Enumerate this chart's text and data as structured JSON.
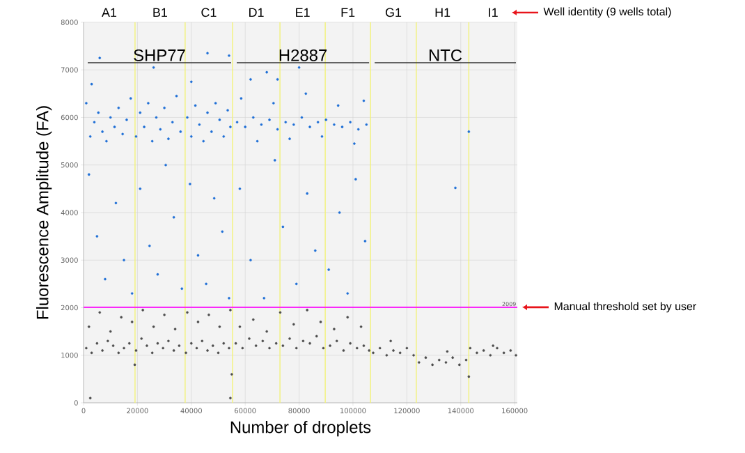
{
  "chart_data": {
    "type": "scatter",
    "xlabel": "Number of droplets",
    "ylabel": "Fluorescence Amplitude (FA)",
    "xlim": [
      0,
      161000
    ],
    "ylim": [
      0,
      8000
    ],
    "xticks": [
      0,
      20000,
      40000,
      60000,
      80000,
      100000,
      120000,
      140000,
      160000
    ],
    "yticks": [
      0,
      1000,
      2000,
      3000,
      4000,
      5000,
      6000,
      7000,
      8000
    ],
    "grid": true,
    "series": [
      {
        "color": "#1f6fd6",
        "x": [
          1000,
          2500,
          4000,
          5500,
          7000,
          8500,
          10000,
          11500,
          13000,
          14500,
          16000,
          17500,
          19500,
          21000,
          22500,
          24000,
          25500,
          27000,
          28500,
          30000,
          31500,
          33000,
          34500,
          36000,
          38500,
          40000,
          41500,
          43000,
          44500,
          46000,
          47500,
          49000,
          50500,
          52000,
          53500,
          54500,
          2000,
          5000,
          8000,
          12000,
          15000,
          18000,
          21000,
          24500,
          27500,
          30500,
          33500,
          36500,
          39500,
          42500,
          45500,
          48500,
          51500,
          54000,
          6000,
          46000,
          54000,
          3000,
          26000,
          40000,
          57000,
          60000,
          63000,
          66000,
          69000,
          72000,
          75000,
          78000,
          81000,
          84000,
          87000,
          90000,
          93000,
          96000,
          99000,
          102000,
          105000,
          58500,
          64500,
          70500,
          76500,
          82500,
          88500,
          94500,
          100500,
          104000,
          58000,
          62000,
          67000,
          71000,
          74000,
          79000,
          83000,
          86000,
          91000,
          95000,
          98000,
          101000,
          104500,
          62000,
          68000,
          80000,
          72000,
          138000,
          143000
        ],
        "values": [
          6300,
          5600,
          5900,
          6100,
          5700,
          5500,
          6000,
          5800,
          6200,
          5650,
          5950,
          6400,
          5600,
          6100,
          5800,
          6300,
          5500,
          6000,
          5750,
          6200,
          5550,
          5900,
          6450,
          5700,
          6000,
          5600,
          6250,
          5850,
          5500,
          6100,
          5700,
          6300,
          5950,
          5600,
          6150,
          5800,
          4800,
          3500,
          2600,
          4200,
          3000,
          2300,
          4500,
          3300,
          2700,
          5000,
          3900,
          2400,
          4600,
          3100,
          2500,
          4300,
          3600,
          2200,
          7250,
          7350,
          7300,
          6700,
          7050,
          6750,
          5900,
          5800,
          6000,
          5850,
          5950,
          5750,
          5900,
          5850,
          6000,
          5800,
          5900,
          5950,
          5850,
          5800,
          5900,
          5750,
          5850,
          6400,
          5500,
          6300,
          5550,
          6500,
          5600,
          6250,
          5450,
          6350,
          4500,
          3000,
          2200,
          5100,
          3700,
          2500,
          4400,
          3200,
          2800,
          4000,
          2300,
          4700,
          3400,
          6800,
          6950,
          7050,
          6800,
          4520,
          5700
        ]
      },
      {
        "color": "#4d4d4d",
        "x": [
          1000,
          3000,
          5000,
          7000,
          9000,
          11000,
          13000,
          15000,
          17000,
          19500,
          21500,
          23500,
          25500,
          27500,
          29500,
          31500,
          33500,
          35500,
          38000,
          40000,
          42000,
          44000,
          46000,
          48000,
          50000,
          52000,
          54000,
          2000,
          6000,
          10000,
          14000,
          18000,
          22000,
          26000,
          30000,
          34000,
          38500,
          42500,
          46500,
          50500,
          54500,
          2500,
          54500,
          19000,
          55000,
          56500,
          59000,
          61500,
          64000,
          66500,
          69000,
          71500,
          74000,
          76500,
          79000,
          81500,
          84000,
          86500,
          89000,
          91500,
          94000,
          96500,
          99000,
          101500,
          104000,
          106000,
          58000,
          63000,
          68000,
          73000,
          78000,
          83000,
          88000,
          93000,
          98000,
          103000,
          107500,
          110000,
          112500,
          115000,
          117500,
          120000,
          122500,
          114000,
          124500,
          127000,
          129500,
          132000,
          134500,
          137000,
          139500,
          142000,
          135000,
          143500,
          146000,
          148500,
          151000,
          153500,
          156000,
          158500,
          160500,
          152000,
          143000
        ],
        "values": [
          1150,
          1050,
          1250,
          1100,
          1300,
          1200,
          1050,
          1150,
          1250,
          1100,
          1350,
          1200,
          1050,
          1250,
          1150,
          1300,
          1100,
          1200,
          1050,
          1250,
          1150,
          1300,
          1100,
          1200,
          1050,
          1250,
          1150,
          1600,
          1900,
          1500,
          1800,
          1700,
          1950,
          1600,
          1850,
          1550,
          1900,
          1700,
          1850,
          1600,
          1950,
          100,
          100,
          800,
          600,
          1250,
          1150,
          1350,
          1200,
          1300,
          1150,
          1250,
          1200,
          1350,
          1150,
          1300,
          1250,
          1400,
          1150,
          1200,
          1300,
          1100,
          1250,
          1150,
          1200,
          1100,
          1600,
          1750,
          1500,
          1900,
          1650,
          1950,
          1700,
          1550,
          1800,
          1600,
          1050,
          1150,
          1000,
          1100,
          1050,
          1150,
          1000,
          1300,
          850,
          950,
          800,
          900,
          850,
          950,
          800,
          900,
          1080,
          1150,
          1050,
          1100,
          1000,
          1150,
          1050,
          1100,
          1000,
          1200,
          550
        ]
      }
    ],
    "ref_lines": [
      {
        "axis": "x",
        "value": 19100,
        "color": "#f2f27a"
      },
      {
        "axis": "x",
        "value": 37700,
        "color": "#f2f27a"
      },
      {
        "axis": "x",
        "value": 55300,
        "color": "#f2f27a"
      },
      {
        "axis": "x",
        "value": 72900,
        "color": "#f2f27a"
      },
      {
        "axis": "x",
        "value": 89700,
        "color": "#f2f27a"
      },
      {
        "axis": "x",
        "value": 106500,
        "color": "#f2f27a"
      },
      {
        "axis": "x",
        "value": 123500,
        "color": "#f2f27a"
      },
      {
        "axis": "x",
        "value": 143000,
        "color": "#f2f27a"
      },
      {
        "axis": "y",
        "value": 2009,
        "label": "2009",
        "color": "#ff00ff"
      }
    ],
    "annotations": [
      "A1",
      "B1",
      "C1",
      "D1",
      "E1",
      "F1",
      "G1",
      "H1",
      "I1",
      "Well identity (9 wells total)",
      "SHP77",
      "H2887",
      "NTC",
      "Manual threshold set by user"
    ]
  }
}
